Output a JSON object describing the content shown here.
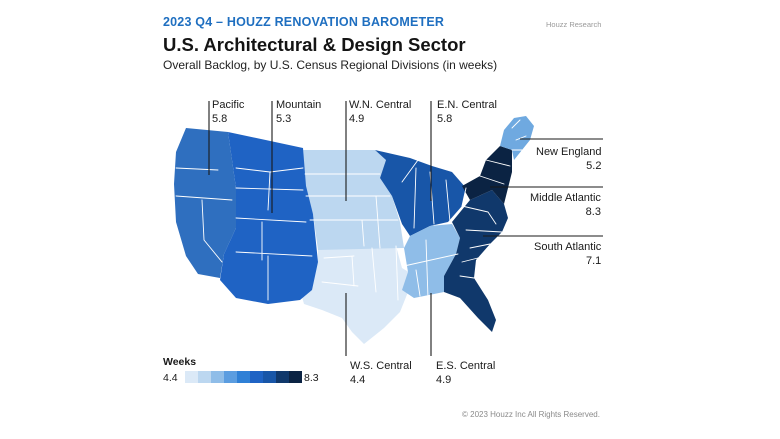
{
  "header": {
    "kicker": "2023 Q4 – HOUZZ RENOVATION BAROMETER",
    "title": "U.S. Architectural & Design Sector",
    "subtitle": "Overall Backlog, by U.S. Census Regional Divisions (in weeks)",
    "brand": "Houzz Research"
  },
  "regions": [
    {
      "name": "Pacific",
      "value": "5.8",
      "weeks": 5.8,
      "color": "#2f6fbf"
    },
    {
      "name": "Mountain",
      "value": "5.3",
      "weeks": 5.3,
      "color": "#1f63c4"
    },
    {
      "name": "W.N. Central",
      "value": "4.9",
      "weeks": 4.9,
      "color": "#bcd7f0"
    },
    {
      "name": "E.N. Central",
      "value": "5.8",
      "weeks": 5.8,
      "color": "#1856a8"
    },
    {
      "name": "New England",
      "value": "5.2",
      "weeks": 5.2,
      "color": "#6fa9e0"
    },
    {
      "name": "Middle Atlantic",
      "value": "8.3",
      "weeks": 8.3,
      "color": "#0b2343"
    },
    {
      "name": "South Atlantic",
      "value": "7.1",
      "weeks": 7.1,
      "color": "#10386b"
    },
    {
      "name": "W.S. Central",
      "value": "4.4",
      "weeks": 4.4,
      "color": "#dbe9f7"
    },
    {
      "name": "E.S. Central",
      "value": "4.9",
      "weeks": 4.9,
      "color": "#8fbde8"
    }
  ],
  "legend": {
    "title": "Weeks",
    "min": "4.4",
    "max": "8.3",
    "colors": [
      "#dbe9f7",
      "#bcd7f0",
      "#8fbde8",
      "#5b9de0",
      "#2f80d6",
      "#1f63c4",
      "#1856a8",
      "#10386b",
      "#0b2343"
    ]
  },
  "footer": "© 2023 Houzz Inc All Rights Reserved."
}
